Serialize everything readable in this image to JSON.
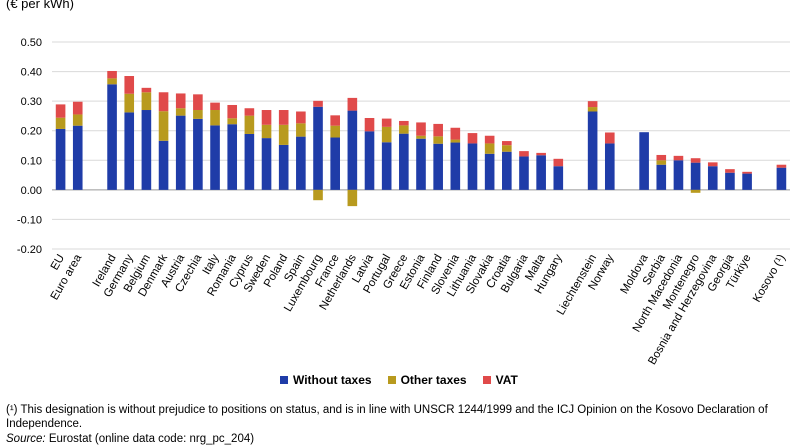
{
  "unit_label": "(€ per kWh)",
  "legend": [
    {
      "label": "Without taxes",
      "color": "#1f3ca8"
    },
    {
      "label": "Other taxes",
      "color": "#b89a1e"
    },
    {
      "label": "VAT",
      "color": "#e04a4a"
    }
  ],
  "footnote": "(¹) This designation is without prejudice to positions on status, and is in line with UNSCR 1244/1999 and the ICJ Opinion on the Kosovo Declaration of Independence.",
  "source": {
    "label": "Source:",
    "text": "Eurostat (online data code: nrg_pc_204)"
  },
  "chart_data": {
    "type": "bar",
    "stacked": true,
    "ylim": [
      -0.2,
      0.5
    ],
    "yticks": [
      "-0.20",
      "-0.10",
      "0.00",
      "0.10",
      "0.20",
      "0.30",
      "0.40",
      "0.50"
    ],
    "grid": true,
    "legend_position": "bottom",
    "categories": [
      "EU",
      "Euro area",
      "",
      "Ireland",
      "Germany",
      "Belgium",
      "Denmark",
      "Austria",
      "Czechia",
      "Italy",
      "Romania",
      "Cyprus",
      "Sweden",
      "Poland",
      "Spain",
      "Luxembourg",
      "France",
      "Netherlands",
      "Latvia",
      "Portugal",
      "Greece",
      "Estonia",
      "Finland",
      "Slovenia",
      "Lithuania",
      "Slovakia",
      "Croatia",
      "Bulgaria",
      "Malta",
      "Hungary",
      "",
      "Liechtenstein",
      "Norway",
      "",
      "Moldova",
      "Serbia",
      "North Macedonia",
      "Montenegro",
      "Bosnia and Herzegovina",
      "Georgia",
      "Türkiye",
      "",
      "Kosovo (¹)"
    ],
    "series": [
      {
        "name": "Without taxes",
        "color": "#1f3ca8",
        "values": [
          0.206,
          0.217,
          null,
          0.357,
          0.262,
          0.27,
          0.166,
          0.251,
          0.24,
          0.218,
          0.222,
          0.189,
          0.175,
          0.152,
          0.18,
          0.281,
          0.177,
          0.268,
          0.198,
          0.161,
          0.19,
          0.173,
          0.156,
          0.16,
          0.157,
          0.122,
          0.129,
          0.113,
          0.117,
          0.08,
          null,
          0.265,
          0.157,
          null,
          0.195,
          0.085,
          0.1,
          0.092,
          0.08,
          0.058,
          0.055,
          null,
          0.075
        ]
      },
      {
        "name": "Other taxes",
        "color": "#b89a1e",
        "values": [
          0.038,
          0.038,
          null,
          0.02,
          0.063,
          0.06,
          0.1,
          0.025,
          0.03,
          0.052,
          0.02,
          0.062,
          0.045,
          0.068,
          0.045,
          -0.035,
          0.04,
          -0.055,
          0.0,
          0.052,
          0.028,
          0.01,
          0.025,
          0.01,
          0.0,
          0.035,
          0.022,
          0.0,
          0.0,
          0.0,
          null,
          0.015,
          0.0,
          null,
          0.0,
          0.015,
          0.0,
          -0.01,
          0.0,
          0.0,
          0.0,
          null,
          0.0
        ]
      },
      {
        "name": "VAT",
        "color": "#e04a4a",
        "values": [
          0.045,
          0.043,
          null,
          0.025,
          0.06,
          0.015,
          0.064,
          0.05,
          0.053,
          0.025,
          0.045,
          0.025,
          0.05,
          0.05,
          0.04,
          0.02,
          0.035,
          0.043,
          0.045,
          0.028,
          0.015,
          0.045,
          0.042,
          0.04,
          0.035,
          0.026,
          0.014,
          0.018,
          0.008,
          0.025,
          null,
          0.02,
          0.037,
          null,
          0.0,
          0.018,
          0.015,
          0.015,
          0.013,
          0.012,
          0.006,
          null,
          0.01
        ]
      }
    ]
  }
}
